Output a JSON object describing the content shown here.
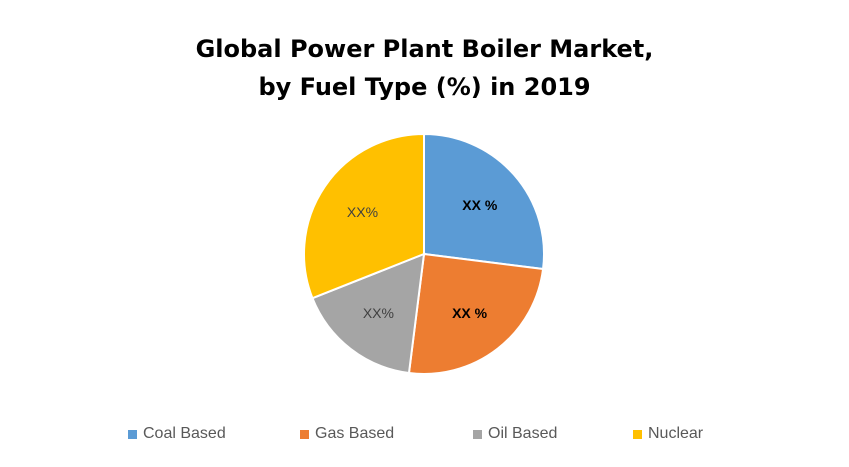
{
  "chart_data": {
    "type": "pie",
    "title_lines": [
      "Global Power Plant Boiler Market,",
      "by Fuel Type (%) in 2019"
    ],
    "slices": [
      {
        "name": "Coal Based",
        "value": 27,
        "label": "XX %",
        "color": "#5B9BD5",
        "label_color": "#000000",
        "label_bold": true
      },
      {
        "name": "Gas Based",
        "value": 25,
        "label": "XX %",
        "color": "#ED7D31",
        "label_color": "#000000",
        "label_bold": true
      },
      {
        "name": "Oil Based",
        "value": 17,
        "label": "XX%",
        "color": "#A5A5A5",
        "label_color": "#404040",
        "label_bold": false
      },
      {
        "name": "Nuclear",
        "value": 31,
        "label": "XX%",
        "color": "#FFC000",
        "label_color": "#404040",
        "label_bold": false
      }
    ],
    "start_angle": "12 o'clock",
    "direction": "clockwise",
    "legend_position": "bottom"
  }
}
